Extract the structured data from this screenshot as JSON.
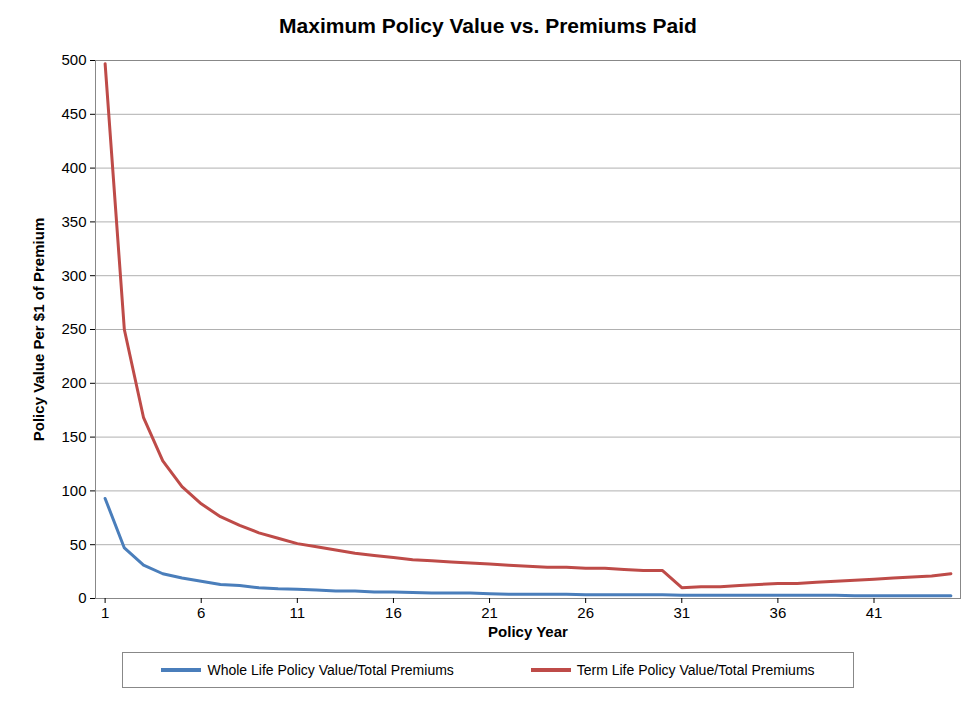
{
  "chart_data": {
    "type": "line",
    "title": "Maximum Policy Value vs. Premiums Paid",
    "x_label": "Policy Year",
    "y_label": "Policy Value Per $1 of Premium",
    "x": [
      1,
      2,
      3,
      4,
      5,
      6,
      7,
      8,
      9,
      10,
      11,
      12,
      13,
      14,
      15,
      16,
      17,
      18,
      19,
      20,
      21,
      22,
      23,
      24,
      25,
      26,
      27,
      28,
      29,
      30,
      31,
      32,
      33,
      34,
      35,
      36,
      37,
      38,
      39,
      40,
      41,
      42,
      43,
      44,
      45
    ],
    "series": [
      {
        "name": "Whole Life Policy Value/Total Premiums",
        "color": "#4a7ebb",
        "values": [
          93,
          47,
          31,
          23,
          19,
          16,
          13,
          12,
          10,
          9,
          8.5,
          8,
          7,
          7,
          6,
          6,
          5.5,
          5,
          5,
          5,
          4.5,
          4,
          4,
          4,
          4,
          3.5,
          3.5,
          3.5,
          3.5,
          3.5,
          3,
          3,
          3,
          3,
          3,
          3,
          3,
          3,
          3,
          2.5,
          2.5,
          2.5,
          2.5,
          2.5,
          2.5
        ]
      },
      {
        "name": "Term Life Policy Value/Total Premiums",
        "color": "#be4b48",
        "values": [
          497,
          250,
          168,
          128,
          104,
          88,
          76,
          68,
          61,
          56,
          51,
          48,
          45,
          42,
          40,
          38,
          36,
          35,
          34,
          33,
          32,
          31,
          30,
          29,
          29,
          28,
          28,
          27,
          26,
          26,
          10,
          11,
          11,
          12,
          13,
          14,
          14,
          15,
          16,
          17,
          18,
          19,
          20,
          21,
          23
        ]
      }
    ],
    "xlim": [
      0.5,
      45.5
    ],
    "xticks": [
      1,
      6,
      11,
      16,
      21,
      26,
      31,
      36,
      41
    ],
    "ylim": [
      0,
      500
    ],
    "yticks": [
      0,
      50,
      100,
      150,
      200,
      250,
      300,
      350,
      400,
      450,
      500
    ],
    "grid": true,
    "legend": "bottom"
  }
}
